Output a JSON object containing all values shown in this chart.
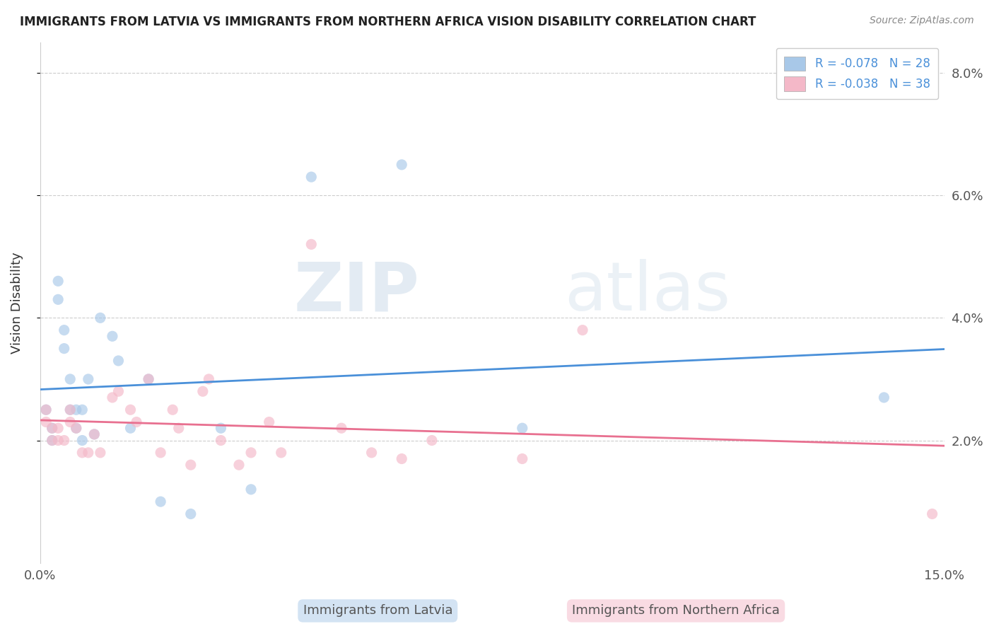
{
  "title": "IMMIGRANTS FROM LATVIA VS IMMIGRANTS FROM NORTHERN AFRICA VISION DISABILITY CORRELATION CHART",
  "source": "Source: ZipAtlas.com",
  "ylabel": "Vision Disability",
  "xlim": [
    0.0,
    0.15
  ],
  "ylim": [
    0.0,
    0.085
  ],
  "yticks": [
    0.02,
    0.04,
    0.06,
    0.08
  ],
  "ytick_labels": [
    "2.0%",
    "4.0%",
    "6.0%",
    "8.0%"
  ],
  "xticks": [
    0.0,
    0.15
  ],
  "xtick_labels": [
    "0.0%",
    "15.0%"
  ],
  "legend_blue_r": "R = -0.078",
  "legend_blue_n": "N = 28",
  "legend_pink_r": "R = -0.038",
  "legend_pink_n": "N = 38",
  "blue_color": "#a8c8e8",
  "pink_color": "#f4b8c8",
  "blue_line_color": "#4a90d9",
  "pink_line_color": "#e87090",
  "legend_text_color": "#4a90d9",
  "scatter_alpha": 0.65,
  "scatter_size": 120,
  "blue_points_x": [
    0.001,
    0.002,
    0.002,
    0.003,
    0.003,
    0.004,
    0.004,
    0.005,
    0.005,
    0.006,
    0.006,
    0.007,
    0.007,
    0.008,
    0.009,
    0.01,
    0.012,
    0.013,
    0.015,
    0.018,
    0.02,
    0.025,
    0.03,
    0.035,
    0.045,
    0.06,
    0.08,
    0.14
  ],
  "blue_points_y": [
    0.025,
    0.022,
    0.02,
    0.046,
    0.043,
    0.038,
    0.035,
    0.03,
    0.025,
    0.025,
    0.022,
    0.02,
    0.025,
    0.03,
    0.021,
    0.04,
    0.037,
    0.033,
    0.022,
    0.03,
    0.01,
    0.008,
    0.022,
    0.012,
    0.063,
    0.065,
    0.022,
    0.027
  ],
  "pink_points_x": [
    0.001,
    0.001,
    0.002,
    0.002,
    0.003,
    0.003,
    0.004,
    0.005,
    0.005,
    0.006,
    0.007,
    0.008,
    0.009,
    0.01,
    0.012,
    0.013,
    0.015,
    0.016,
    0.018,
    0.02,
    0.022,
    0.023,
    0.025,
    0.027,
    0.028,
    0.03,
    0.033,
    0.035,
    0.038,
    0.04,
    0.045,
    0.05,
    0.055,
    0.06,
    0.065,
    0.08,
    0.09,
    0.148
  ],
  "pink_points_y": [
    0.025,
    0.023,
    0.022,
    0.02,
    0.022,
    0.02,
    0.02,
    0.025,
    0.023,
    0.022,
    0.018,
    0.018,
    0.021,
    0.018,
    0.027,
    0.028,
    0.025,
    0.023,
    0.03,
    0.018,
    0.025,
    0.022,
    0.016,
    0.028,
    0.03,
    0.02,
    0.016,
    0.018,
    0.023,
    0.018,
    0.052,
    0.022,
    0.018,
    0.017,
    0.02,
    0.017,
    0.038,
    0.008
  ],
  "watermark_zip": "ZIP",
  "watermark_atlas": "atlas",
  "background_color": "#ffffff",
  "grid_color": "#cccccc",
  "bottom_label_blue": "Immigrants from Latvia",
  "bottom_label_pink": "Immigrants from Northern Africa"
}
